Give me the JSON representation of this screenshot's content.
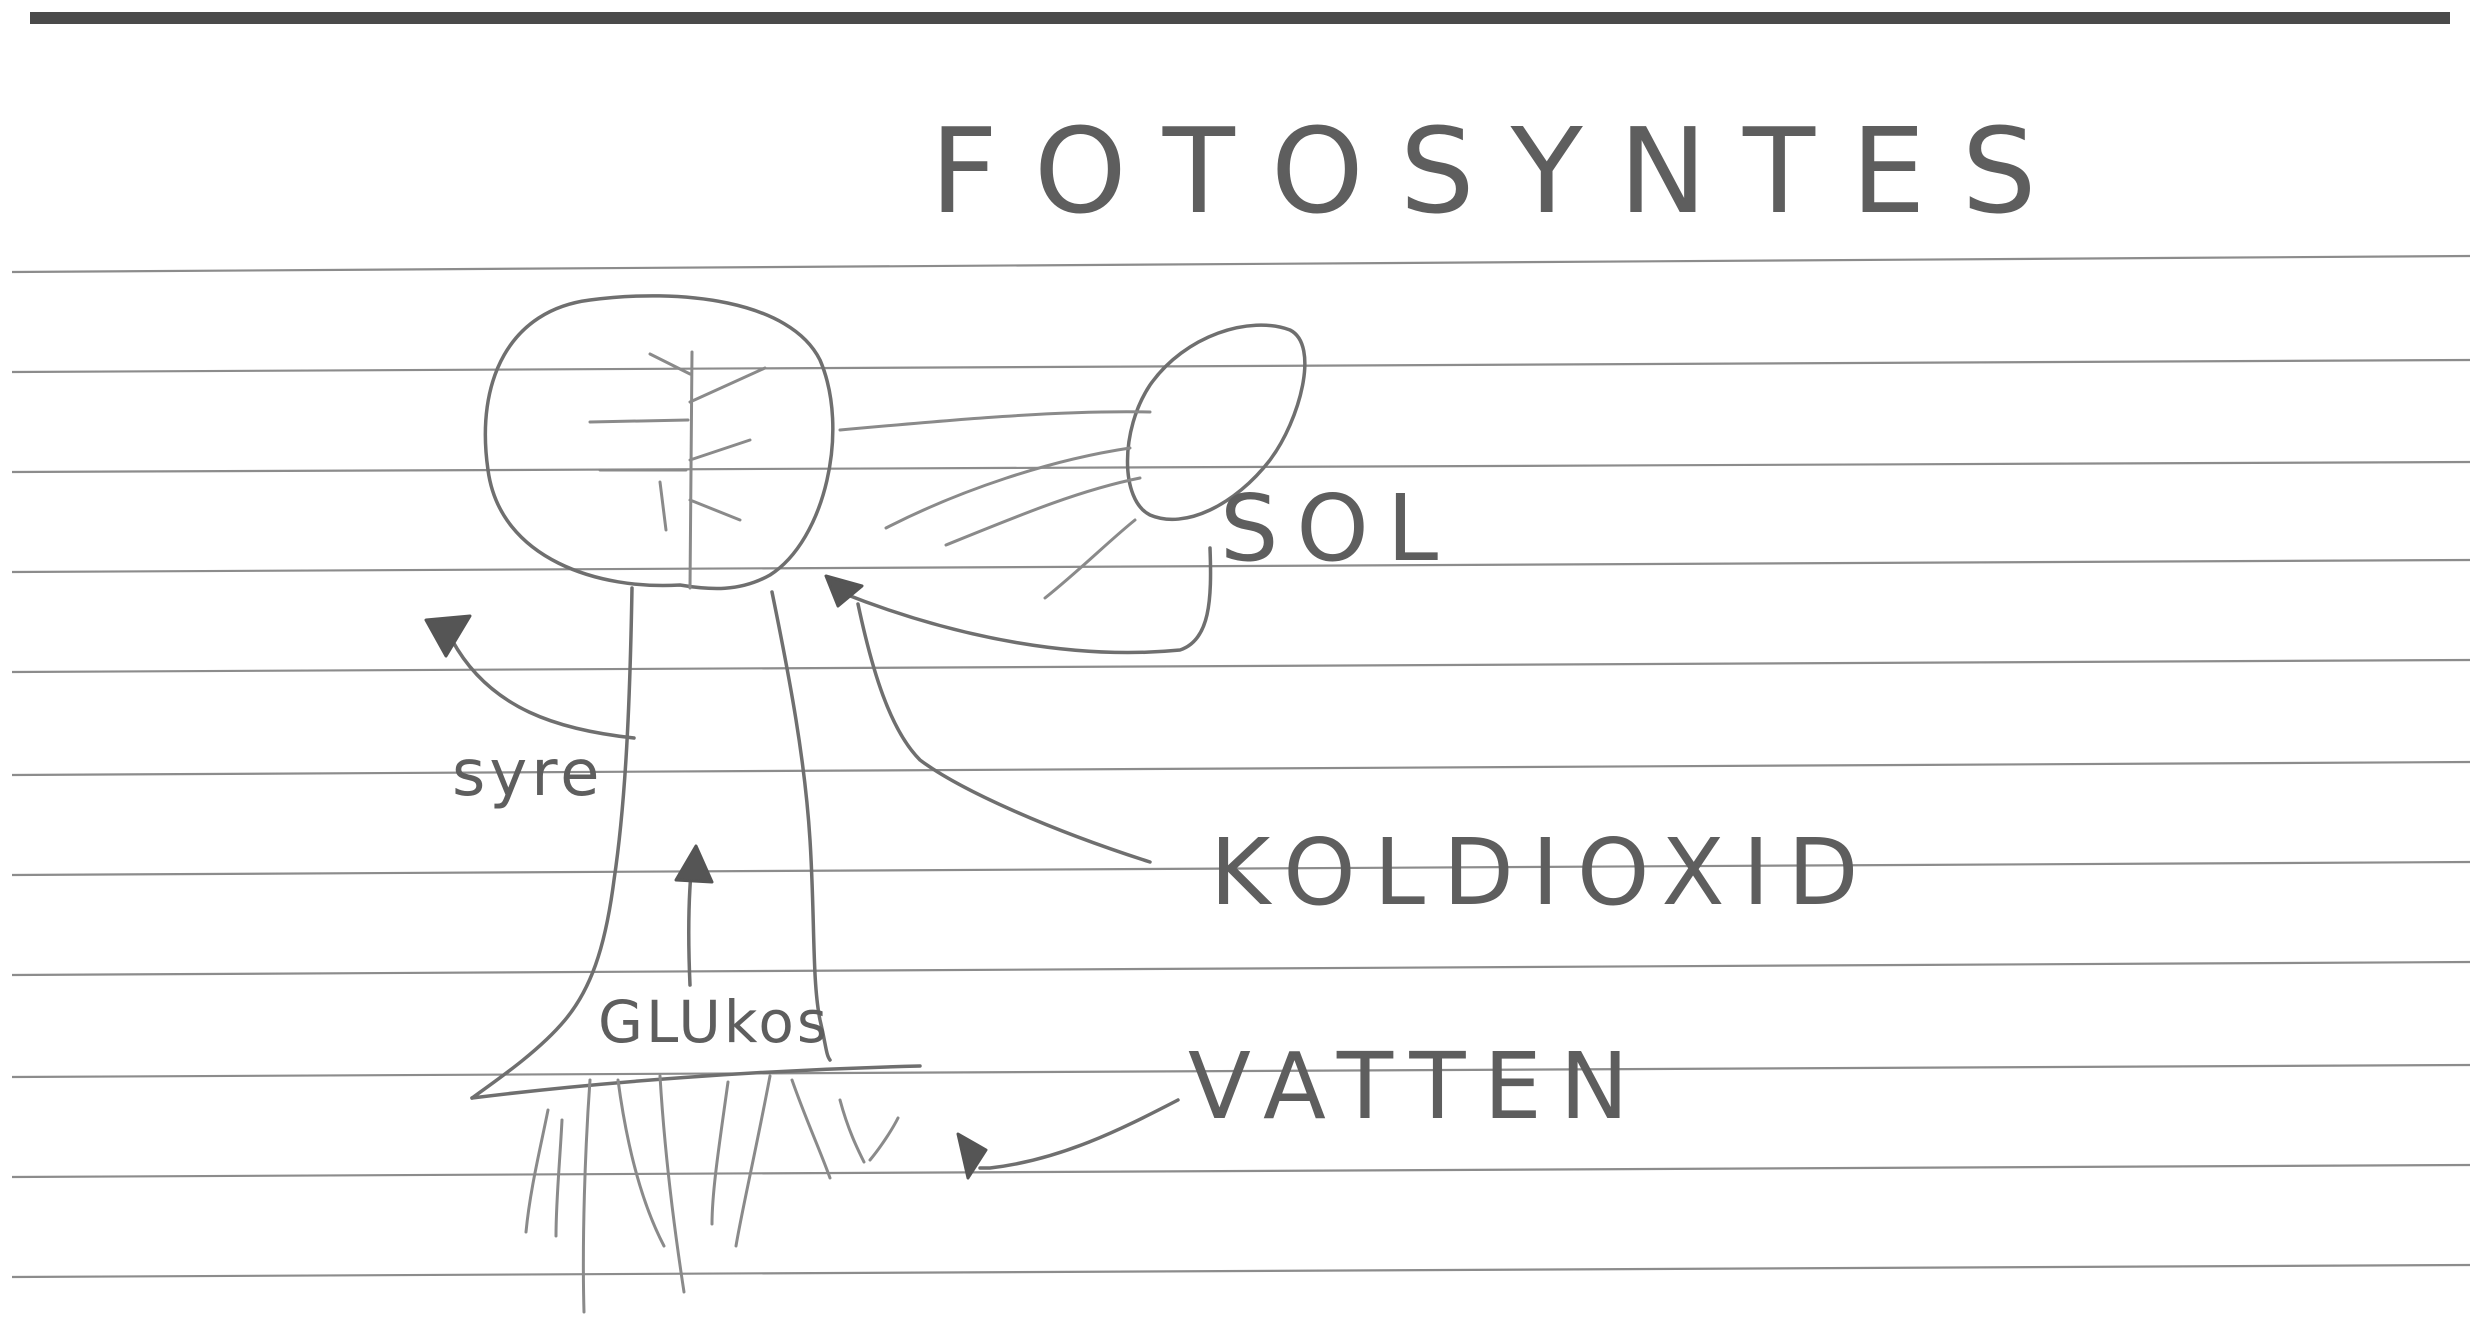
{
  "drawing": {
    "title": "FOTOSYNTES",
    "labels": {
      "sun": "SOL",
      "carbon_dioxide": "KOLDIOXID",
      "water": "VATTEN",
      "oxygen": "syre",
      "glucose": "GLUkos"
    }
  }
}
